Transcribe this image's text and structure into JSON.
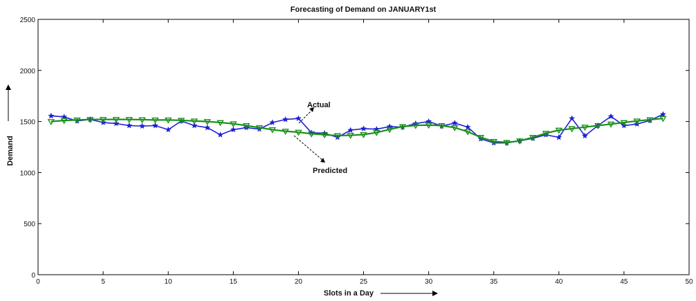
{
  "chart_data": {
    "type": "line",
    "title": "Forecasting of Demand on JANUARY1st",
    "xlabel": "Slots in a Day",
    "ylabel": "Demand",
    "xlim": [
      0,
      50
    ],
    "ylim": [
      0,
      2500
    ],
    "xticks": [
      0,
      5,
      10,
      15,
      20,
      25,
      30,
      35,
      40,
      45,
      50
    ],
    "yticks": [
      0,
      500,
      1000,
      1500,
      2000,
      2500
    ],
    "grid": false,
    "legend": "none",
    "x": [
      1,
      2,
      3,
      4,
      5,
      6,
      7,
      8,
      9,
      10,
      11,
      12,
      13,
      14,
      15,
      16,
      17,
      18,
      19,
      20,
      21,
      22,
      23,
      24,
      25,
      26,
      27,
      28,
      29,
      30,
      31,
      32,
      33,
      34,
      35,
      36,
      37,
      38,
      39,
      40,
      41,
      42,
      43,
      44,
      45,
      46,
      47,
      48
    ],
    "series": [
      {
        "name": "Actual",
        "color": "#1f1fd8",
        "marker": "star",
        "values": [
          1555,
          1545,
          1505,
          1520,
          1490,
          1480,
          1460,
          1455,
          1460,
          1420,
          1505,
          1460,
          1440,
          1370,
          1420,
          1440,
          1425,
          1490,
          1520,
          1530,
          1390,
          1385,
          1345,
          1415,
          1430,
          1425,
          1450,
          1445,
          1480,
          1500,
          1455,
          1485,
          1445,
          1330,
          1290,
          1290,
          1310,
          1335,
          1370,
          1345,
          1530,
          1360,
          1460,
          1550,
          1460,
          1475,
          1510,
          1570
        ]
      },
      {
        "name": "Predicted",
        "color": "#1a8f1a",
        "marker": "triangle-down",
        "values": [
          1500,
          1510,
          1515,
          1520,
          1520,
          1520,
          1520,
          1518,
          1515,
          1515,
          1512,
          1505,
          1500,
          1490,
          1478,
          1460,
          1440,
          1420,
          1405,
          1395,
          1380,
          1370,
          1362,
          1365,
          1372,
          1392,
          1422,
          1450,
          1462,
          1465,
          1460,
          1440,
          1400,
          1345,
          1305,
          1295,
          1310,
          1345,
          1385,
          1415,
          1430,
          1445,
          1460,
          1475,
          1490,
          1505,
          1518,
          1530
        ]
      }
    ],
    "annotations": [
      {
        "text": "Actual"
      },
      {
        "text": "Predicted"
      }
    ]
  }
}
